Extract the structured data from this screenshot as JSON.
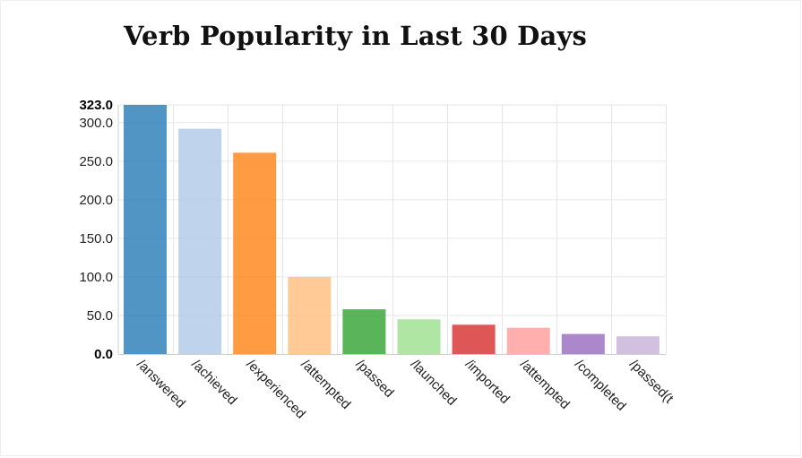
{
  "chart_data": {
    "type": "bar",
    "title": "Verb Popularity in Last 30 Days",
    "xlabel": "",
    "ylabel": "",
    "categories": [
      "/answered",
      "/achieved",
      "/experienced",
      "/attempted",
      "/passed",
      "/launched",
      "/imported",
      "/attempted",
      "/completed",
      "/passed(t"
    ],
    "values": [
      323,
      292,
      261,
      100,
      58,
      45,
      38,
      34,
      26,
      23
    ],
    "colors": [
      "#1f77b4",
      "#aec7e8",
      "#ff7f0e",
      "#ffbb78",
      "#2ca02c",
      "#98df8a",
      "#d62728",
      "#ff9896",
      "#9467bd",
      "#c5b0d5"
    ],
    "ylim": [
      0,
      323
    ],
    "yticks": [
      "0.0",
      "50.0",
      "100.0",
      "150.0",
      "200.0",
      "250.0",
      "300.0",
      "323.0"
    ],
    "grid": true,
    "legend": "none"
  }
}
